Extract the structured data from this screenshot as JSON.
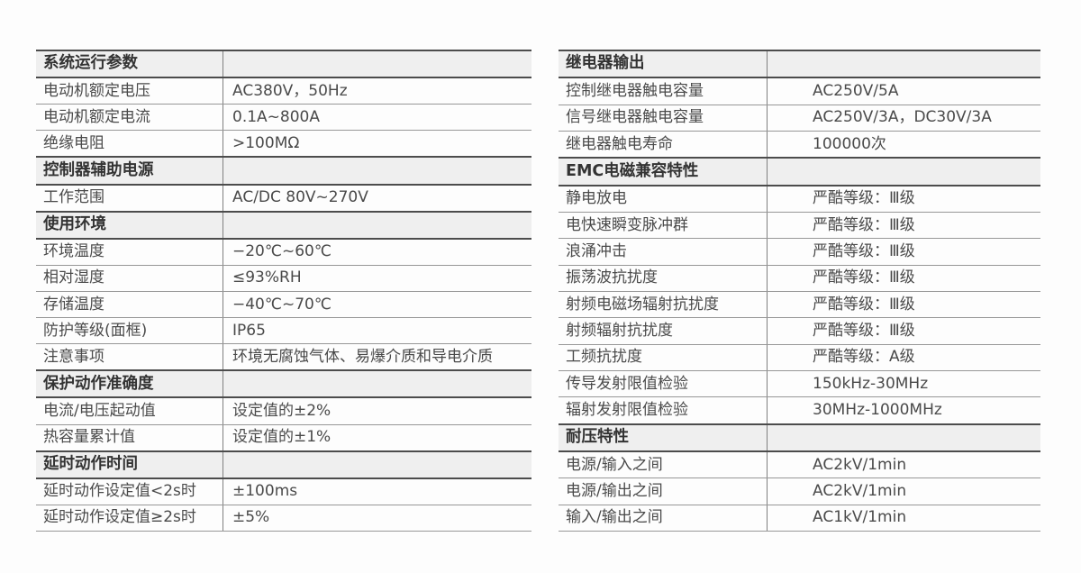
{
  "colors": {
    "thick_line": "#4c4c4c",
    "thin_line": "#979797",
    "divider_line": "#7f7f7f",
    "header_bg": "#efefef",
    "text": "#4a4a4a",
    "page_bg": "#fdfdfd"
  },
  "tables": [
    {
      "name": "left-spec-table",
      "rows": [
        {
          "type": "section",
          "label": "系统运行参数",
          "value": ""
        },
        {
          "type": "data",
          "label": "电动机额定电压",
          "value": "AC380V，50Hz"
        },
        {
          "type": "data",
          "label": "电动机额定电流",
          "value": "0.1A~800A"
        },
        {
          "type": "data",
          "label": "绝缘电阻",
          "value": ">100MΩ"
        },
        {
          "type": "section",
          "label": "控制器辅助电源",
          "value": ""
        },
        {
          "type": "data",
          "label": "工作范围",
          "value": "AC/DC 80V~270V"
        },
        {
          "type": "section",
          "label": "使用环境",
          "value": ""
        },
        {
          "type": "data",
          "label": "环境温度",
          "value": "−20℃~60℃"
        },
        {
          "type": "data",
          "label": "相对湿度",
          "value": "≤93%RH"
        },
        {
          "type": "data",
          "label": "存储温度",
          "value": "−40℃~70℃"
        },
        {
          "type": "data",
          "label": "防护等级(面框)",
          "value": "IP65"
        },
        {
          "type": "data",
          "label": "注意事项",
          "value": "环境无腐蚀气体、易爆介质和导电介质"
        },
        {
          "type": "section",
          "label": "保护动作准确度",
          "value": ""
        },
        {
          "type": "data",
          "label": "电流/电压起动值",
          "value": "设定值的±2%"
        },
        {
          "type": "data",
          "label": "热容量累计值",
          "value": "设定值的±1%"
        },
        {
          "type": "section",
          "label": "延时动作时间",
          "value": ""
        },
        {
          "type": "data",
          "label": "延时动作设定值<2s时",
          "value": "±100ms"
        },
        {
          "type": "data",
          "label": "延时动作设定值≥2s时",
          "value": "±5%"
        }
      ]
    },
    {
      "name": "right-spec-table",
      "rows": [
        {
          "type": "section",
          "label": "继电器输出",
          "value": ""
        },
        {
          "type": "data",
          "label": "控制继电器触电容量",
          "value": "AC250V/5A"
        },
        {
          "type": "data",
          "label": "信号继电器触电容量",
          "value": "AC250V/3A，DC30V/3A"
        },
        {
          "type": "data",
          "label": "继电器触电寿命",
          "value": "100000次"
        },
        {
          "type": "section",
          "label": "EMC电磁兼容特性",
          "value": ""
        },
        {
          "type": "data",
          "label": "静电放电",
          "value": "严酷等级：Ⅲ级"
        },
        {
          "type": "data",
          "label": "电快速瞬变脉冲群",
          "value": "严酷等级：Ⅲ级"
        },
        {
          "type": "data",
          "label": "浪涌冲击",
          "value": "严酷等级：Ⅲ级"
        },
        {
          "type": "data",
          "label": "振荡波抗扰度",
          "value": "严酷等级：Ⅲ级"
        },
        {
          "type": "data",
          "label": "射频电磁场辐射抗扰度",
          "value": "严酷等级：Ⅲ级"
        },
        {
          "type": "data",
          "label": "射频辐射抗扰度",
          "value": "严酷等级：Ⅲ级"
        },
        {
          "type": "data",
          "label": "工频抗扰度",
          "value": "严酷等级：A级"
        },
        {
          "type": "data",
          "label": "传导发射限值检验",
          "value": "150kHz-30MHz"
        },
        {
          "type": "data",
          "label": "辐射发射限值检验",
          "value": "30MHz-1000MHz"
        },
        {
          "type": "section",
          "label": "耐压特性",
          "value": ""
        },
        {
          "type": "data",
          "label": "电源/输入之间",
          "value": "AC2kV/1min"
        },
        {
          "type": "data",
          "label": "电源/输出之间",
          "value": "AC2kV/1min"
        },
        {
          "type": "data",
          "label": "输入/输出之间",
          "value": "AC1kV/1min"
        }
      ]
    }
  ]
}
